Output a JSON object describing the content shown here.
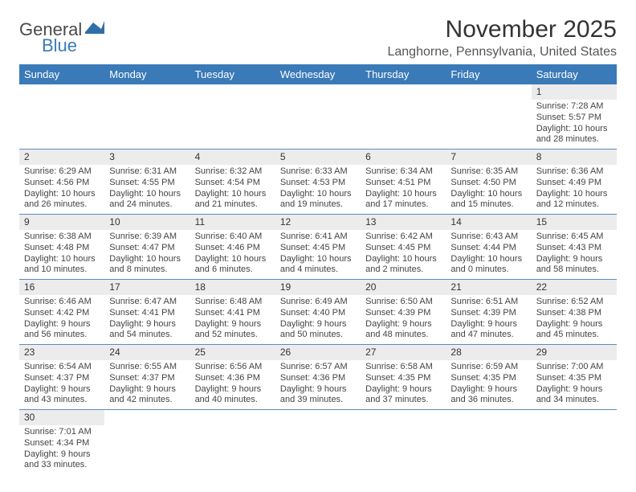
{
  "brand": {
    "part1": "General",
    "part2": "Blue"
  },
  "title": "November 2025",
  "location": "Langhorne, Pennsylvania, United States",
  "colors": {
    "header_bg": "#3a7ab8",
    "header_text": "#ffffff",
    "daynum_bg": "#ececec",
    "row_border": "#5b8bbd",
    "brand_gray": "#4a4a4a",
    "brand_blue": "#3a7ab8"
  },
  "weekdays": [
    "Sunday",
    "Monday",
    "Tuesday",
    "Wednesday",
    "Thursday",
    "Friday",
    "Saturday"
  ],
  "weeks": [
    {
      "nums": [
        "",
        "",
        "",
        "",
        "",
        "",
        "1"
      ],
      "cells": [
        "",
        "",
        "",
        "",
        "",
        "",
        "Sunrise: 7:28 AM\nSunset: 5:57 PM\nDaylight: 10 hours and 28 minutes."
      ]
    },
    {
      "nums": [
        "2",
        "3",
        "4",
        "5",
        "6",
        "7",
        "8"
      ],
      "cells": [
        "Sunrise: 6:29 AM\nSunset: 4:56 PM\nDaylight: 10 hours and 26 minutes.",
        "Sunrise: 6:31 AM\nSunset: 4:55 PM\nDaylight: 10 hours and 24 minutes.",
        "Sunrise: 6:32 AM\nSunset: 4:54 PM\nDaylight: 10 hours and 21 minutes.",
        "Sunrise: 6:33 AM\nSunset: 4:53 PM\nDaylight: 10 hours and 19 minutes.",
        "Sunrise: 6:34 AM\nSunset: 4:51 PM\nDaylight: 10 hours and 17 minutes.",
        "Sunrise: 6:35 AM\nSunset: 4:50 PM\nDaylight: 10 hours and 15 minutes.",
        "Sunrise: 6:36 AM\nSunset: 4:49 PM\nDaylight: 10 hours and 12 minutes."
      ]
    },
    {
      "nums": [
        "9",
        "10",
        "11",
        "12",
        "13",
        "14",
        "15"
      ],
      "cells": [
        "Sunrise: 6:38 AM\nSunset: 4:48 PM\nDaylight: 10 hours and 10 minutes.",
        "Sunrise: 6:39 AM\nSunset: 4:47 PM\nDaylight: 10 hours and 8 minutes.",
        "Sunrise: 6:40 AM\nSunset: 4:46 PM\nDaylight: 10 hours and 6 minutes.",
        "Sunrise: 6:41 AM\nSunset: 4:45 PM\nDaylight: 10 hours and 4 minutes.",
        "Sunrise: 6:42 AM\nSunset: 4:45 PM\nDaylight: 10 hours and 2 minutes.",
        "Sunrise: 6:43 AM\nSunset: 4:44 PM\nDaylight: 10 hours and 0 minutes.",
        "Sunrise: 6:45 AM\nSunset: 4:43 PM\nDaylight: 9 hours and 58 minutes."
      ]
    },
    {
      "nums": [
        "16",
        "17",
        "18",
        "19",
        "20",
        "21",
        "22"
      ],
      "cells": [
        "Sunrise: 6:46 AM\nSunset: 4:42 PM\nDaylight: 9 hours and 56 minutes.",
        "Sunrise: 6:47 AM\nSunset: 4:41 PM\nDaylight: 9 hours and 54 minutes.",
        "Sunrise: 6:48 AM\nSunset: 4:41 PM\nDaylight: 9 hours and 52 minutes.",
        "Sunrise: 6:49 AM\nSunset: 4:40 PM\nDaylight: 9 hours and 50 minutes.",
        "Sunrise: 6:50 AM\nSunset: 4:39 PM\nDaylight: 9 hours and 48 minutes.",
        "Sunrise: 6:51 AM\nSunset: 4:39 PM\nDaylight: 9 hours and 47 minutes.",
        "Sunrise: 6:52 AM\nSunset: 4:38 PM\nDaylight: 9 hours and 45 minutes."
      ]
    },
    {
      "nums": [
        "23",
        "24",
        "25",
        "26",
        "27",
        "28",
        "29"
      ],
      "cells": [
        "Sunrise: 6:54 AM\nSunset: 4:37 PM\nDaylight: 9 hours and 43 minutes.",
        "Sunrise: 6:55 AM\nSunset: 4:37 PM\nDaylight: 9 hours and 42 minutes.",
        "Sunrise: 6:56 AM\nSunset: 4:36 PM\nDaylight: 9 hours and 40 minutes.",
        "Sunrise: 6:57 AM\nSunset: 4:36 PM\nDaylight: 9 hours and 39 minutes.",
        "Sunrise: 6:58 AM\nSunset: 4:35 PM\nDaylight: 9 hours and 37 minutes.",
        "Sunrise: 6:59 AM\nSunset: 4:35 PM\nDaylight: 9 hours and 36 minutes.",
        "Sunrise: 7:00 AM\nSunset: 4:35 PM\nDaylight: 9 hours and 34 minutes."
      ]
    },
    {
      "nums": [
        "30",
        "",
        "",
        "",
        "",
        "",
        ""
      ],
      "cells": [
        "Sunrise: 7:01 AM\nSunset: 4:34 PM\nDaylight: 9 hours and 33 minutes.",
        "",
        "",
        "",
        "",
        "",
        ""
      ]
    }
  ]
}
